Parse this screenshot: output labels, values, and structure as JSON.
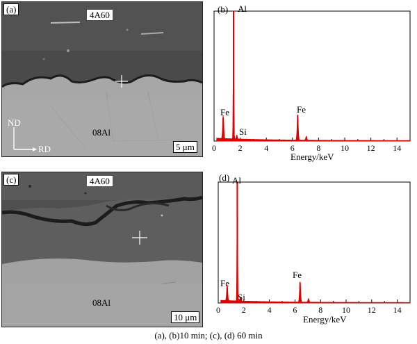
{
  "panel_a": {
    "label": "(a)",
    "material_top": "4A60",
    "material_bottom": "08Al",
    "axis_nd": "ND",
    "axis_rd": "RD",
    "scale": "5 μm"
  },
  "panel_b": {
    "label": "(b)",
    "peaks": {
      "al": "Al",
      "fe_low": "Fe",
      "si": "Si",
      "fe_high": "Fe"
    },
    "xlabel": "Energy/keV"
  },
  "panel_c": {
    "label": "(c)",
    "material_top": "4A60",
    "material_bottom": "08Al",
    "scale": "10 μm"
  },
  "panel_d": {
    "label": "(d)",
    "peaks": {
      "al": "Al",
      "fe_low": "Fe",
      "si": "Si",
      "fe_high": "Fe"
    },
    "xlabel": "Energy/keV"
  },
  "caption": "(a), (b)10 min; (c), (d) 60 min",
  "chart_data": [
    {
      "type": "line",
      "name": "eds-spectrum-b",
      "x_ticks": [
        0,
        2,
        4,
        6,
        8,
        10,
        12,
        14
      ],
      "xlim": [
        0,
        15
      ],
      "xlabel": "Energy/keV",
      "peaks": [
        {
          "label": "Fe",
          "x": 0.7,
          "rel_height": 0.18
        },
        {
          "label": "Al",
          "x": 1.49,
          "rel_height": 1.0
        },
        {
          "label": "Si",
          "x": 1.74,
          "rel_height": 0.03
        },
        {
          "label": "Fe",
          "x": 6.4,
          "rel_height": 0.2
        },
        {
          "label": "",
          "x": 7.06,
          "rel_height": 0.03
        }
      ],
      "color": "#e00000"
    },
    {
      "type": "line",
      "name": "eds-spectrum-d",
      "x_ticks": [
        0,
        2,
        4,
        6,
        8,
        10,
        12,
        14
      ],
      "xlim": [
        0,
        15
      ],
      "xlabel": "Energy/keV",
      "peaks": [
        {
          "label": "Fe",
          "x": 0.7,
          "rel_height": 0.13
        },
        {
          "label": "Al",
          "x": 1.49,
          "rel_height": 1.0
        },
        {
          "label": "Si",
          "x": 1.74,
          "rel_height": 0.03
        },
        {
          "label": "Fe",
          "x": 6.4,
          "rel_height": 0.17
        },
        {
          "label": "",
          "x": 7.06,
          "rel_height": 0.03
        }
      ],
      "color": "#e00000"
    }
  ]
}
